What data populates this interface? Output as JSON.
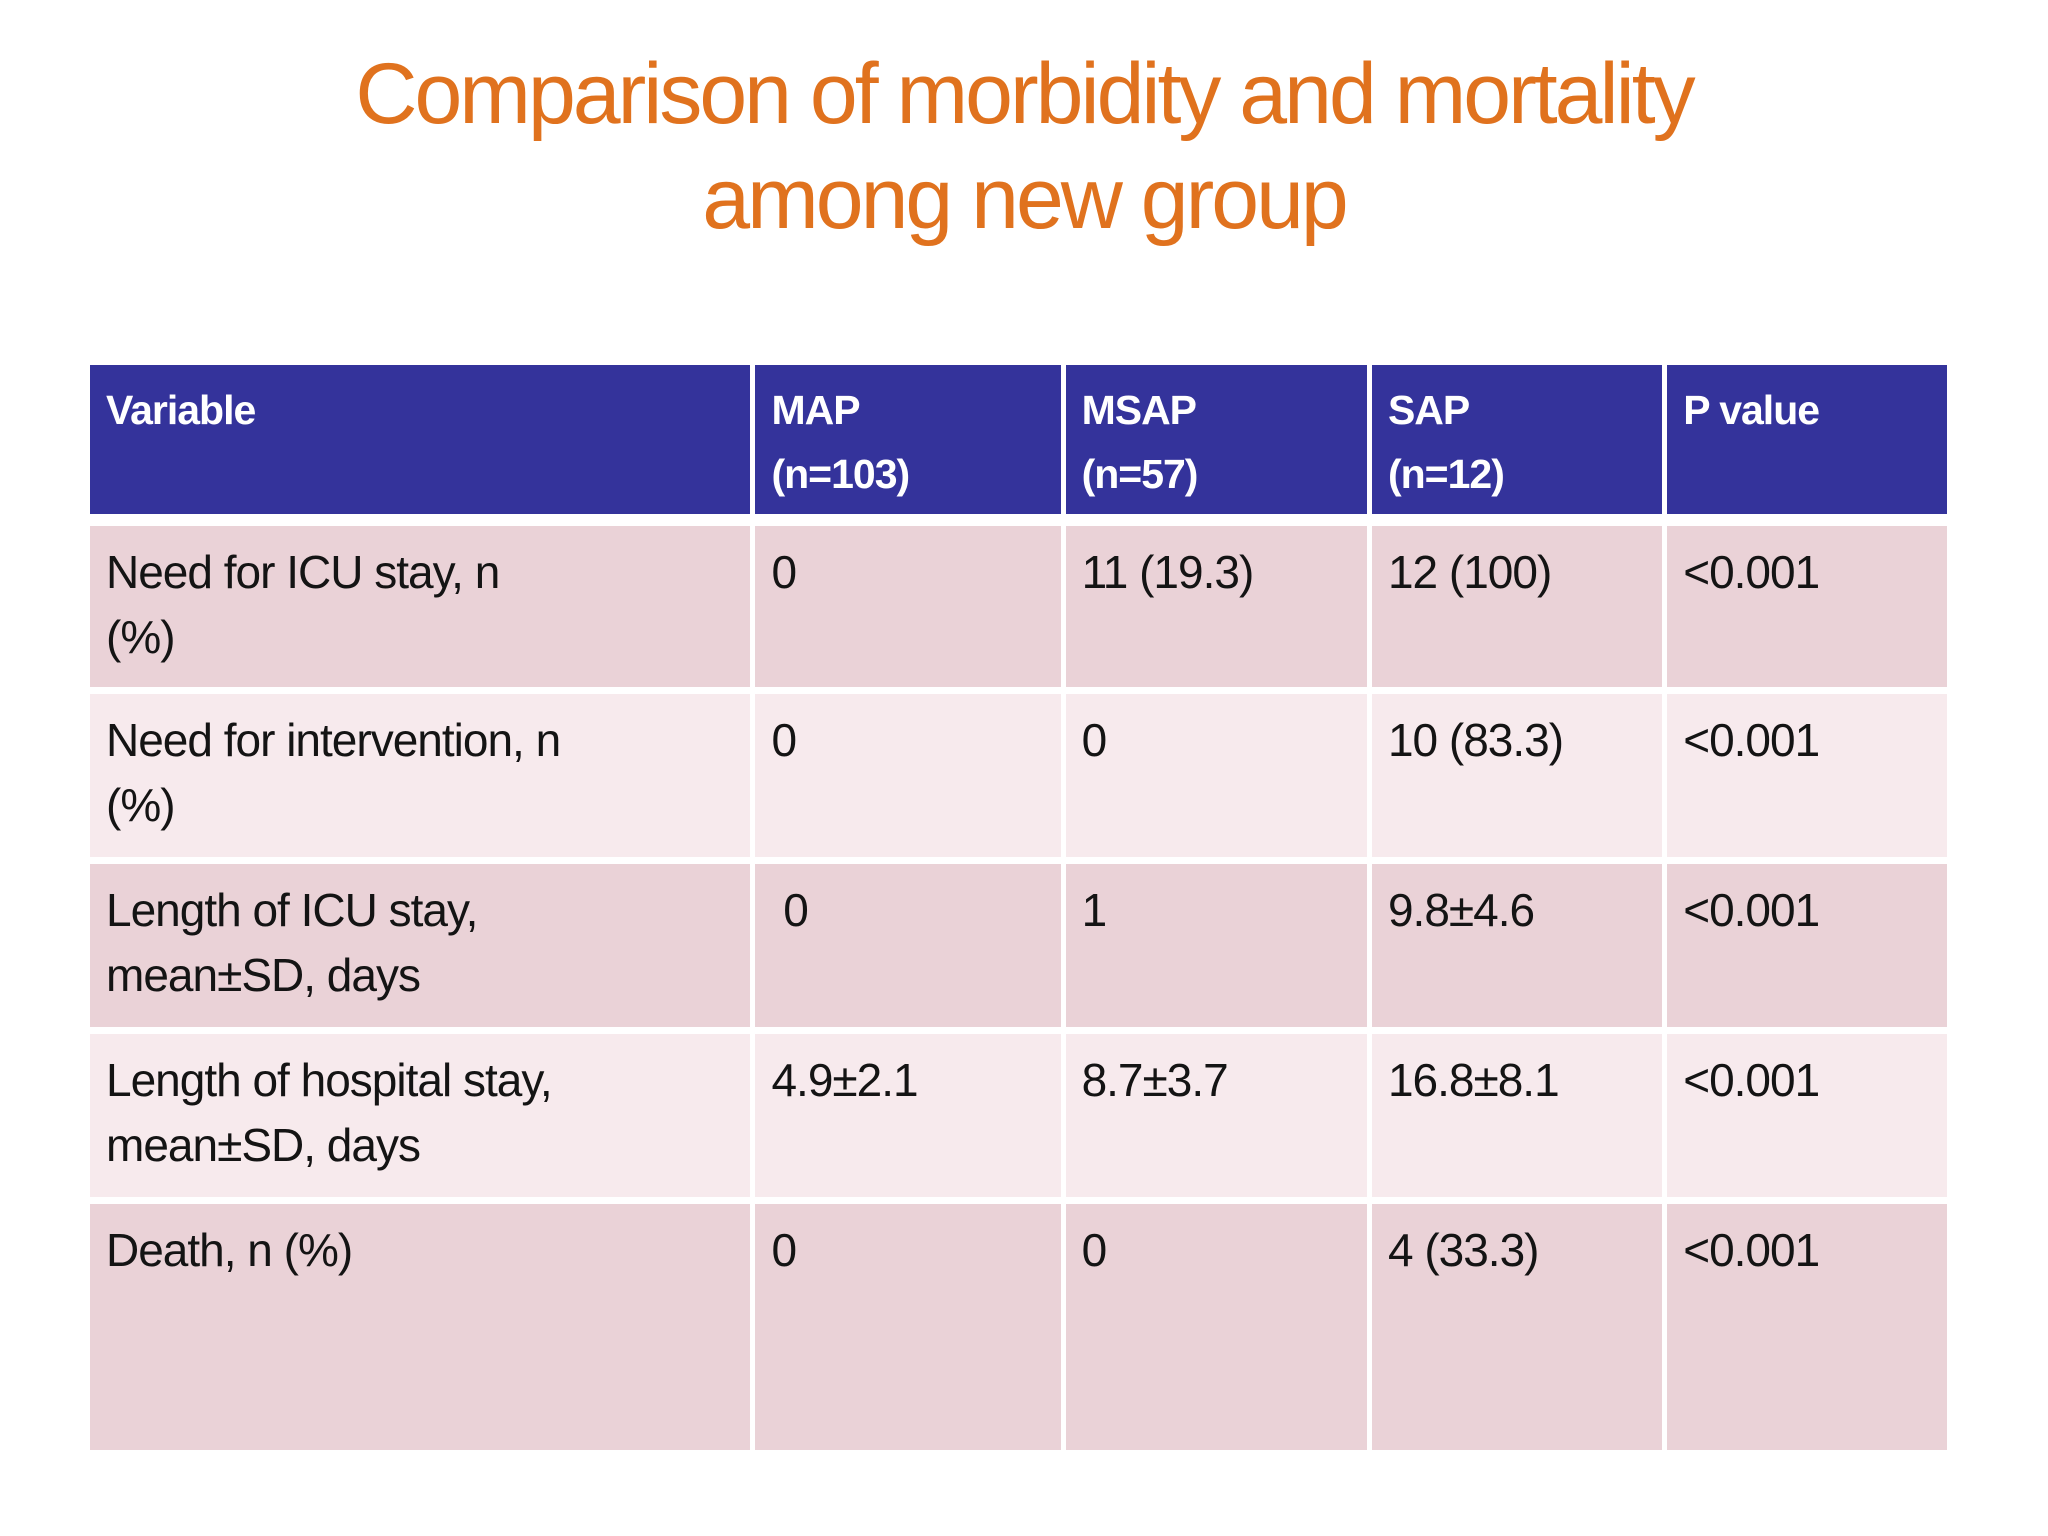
{
  "slide": {
    "title_line1": "Comparison of morbidity and mortality",
    "title_line2": "among new group"
  },
  "colors": {
    "title_orange": "#e0721e",
    "header_blue": "#34339b",
    "row_dark_pink": "#ead2d7",
    "row_light_pink": "#f7eaed",
    "cell_text": "#141414",
    "header_text": "#ffffff"
  },
  "table": {
    "headers": [
      "Variable",
      "MAP\n(n=103)",
      "MSAP\n(n=57)",
      "SAP\n(n=12)",
      "P value"
    ],
    "rows": [
      {
        "cells": [
          "Need for ICU stay, n\n(%)",
          "0",
          "11 (19.3)",
          "12 (100)",
          "<0.001"
        ]
      },
      {
        "cells": [
          "Need for intervention, n\n(%)",
          "0",
          "0",
          "10 (83.3)",
          "<0.001"
        ]
      },
      {
        "cells": [
          "Length of ICU stay,\nmean±SD, days",
          " 0",
          "1",
          "9.8±4.6",
          "<0.001"
        ]
      },
      {
        "cells": [
          "Length of hospital stay,\nmean±SD, days",
          "4.9±2.1",
          "8.7±3.7",
          "16.8±8.1",
          "<0.001"
        ]
      },
      {
        "cells": [
          "Death, n (%)",
          "0",
          "0",
          "4 (33.3)",
          "<0.001"
        ]
      }
    ]
  }
}
